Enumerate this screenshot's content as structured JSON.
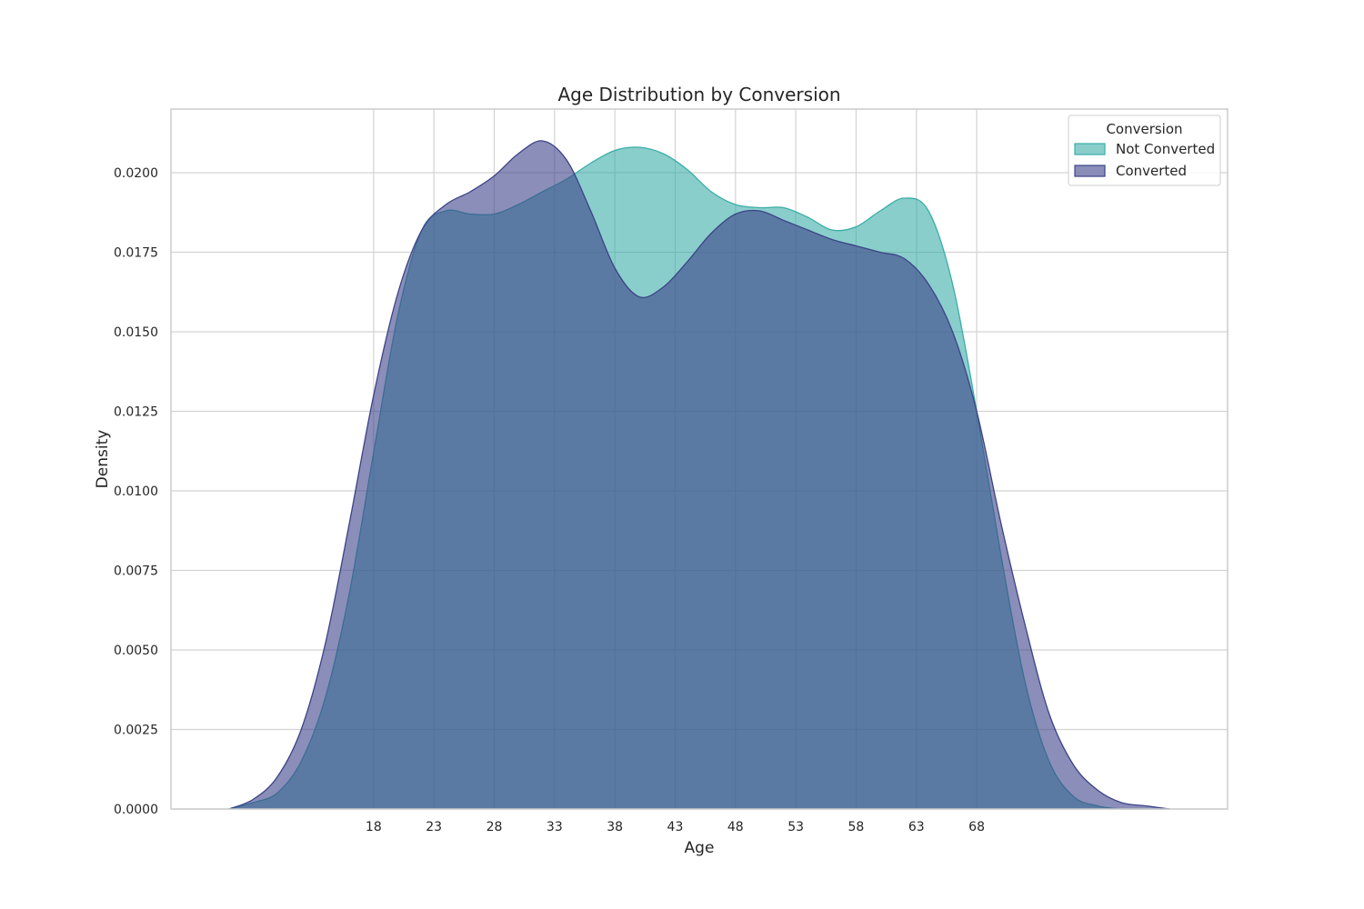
{
  "chart_data": {
    "type": "area",
    "title": "Age Distribution by Conversion",
    "xlabel": "Age",
    "ylabel": "Density",
    "xticks": [
      18,
      23,
      28,
      33,
      38,
      43,
      48,
      53,
      58,
      63,
      68
    ],
    "yticks": [
      "0.0000",
      "0.0025",
      "0.0050",
      "0.0075",
      "0.0100",
      "0.0125",
      "0.0150",
      "0.0175",
      "0.0200"
    ],
    "xlim": [
      1.2,
      88.8
    ],
    "ylim": [
      0,
      0.022
    ],
    "grid": true,
    "legend": {
      "title": "Conversion",
      "placement": "top-right"
    },
    "series": [
      {
        "name": "Not Converted",
        "color": "#3aada8",
        "x": [
          6,
          8,
          10,
          12,
          14,
          16,
          18,
          20,
          22,
          24,
          26,
          28,
          30,
          32,
          34,
          36,
          38,
          40,
          42,
          44,
          46,
          48,
          50,
          52,
          54,
          56,
          58,
          60,
          62,
          64,
          66,
          68,
          70,
          72,
          74,
          76,
          78,
          80,
          82,
          84
        ],
        "values": [
          0.0,
          0.0002,
          0.0005,
          0.0015,
          0.0035,
          0.0068,
          0.0112,
          0.0155,
          0.0182,
          0.0188,
          0.0187,
          0.0187,
          0.019,
          0.0194,
          0.0198,
          0.0203,
          0.0207,
          0.0208,
          0.0206,
          0.0201,
          0.0194,
          0.019,
          0.0189,
          0.0189,
          0.0186,
          0.0182,
          0.0183,
          0.0188,
          0.0192,
          0.0188,
          0.0165,
          0.0125,
          0.008,
          0.004,
          0.0015,
          0.0004,
          0.0001,
          0.0,
          0.0,
          0.0
        ]
      },
      {
        "name": "Converted",
        "color": "#3c4388",
        "x": [
          6,
          8,
          10,
          12,
          14,
          16,
          18,
          20,
          22,
          24,
          26,
          28,
          30,
          32,
          34,
          36,
          38,
          40,
          42,
          44,
          46,
          48,
          50,
          52,
          54,
          56,
          58,
          60,
          62,
          64,
          66,
          68,
          70,
          72,
          74,
          76,
          78,
          80,
          82,
          84
        ],
        "values": [
          0.0,
          0.0003,
          0.001,
          0.0025,
          0.0052,
          0.009,
          0.013,
          0.0162,
          0.0182,
          0.019,
          0.0194,
          0.0199,
          0.0206,
          0.021,
          0.0204,
          0.0188,
          0.017,
          0.0161,
          0.0164,
          0.0172,
          0.0181,
          0.0187,
          0.0188,
          0.0185,
          0.0182,
          0.0179,
          0.0177,
          0.0175,
          0.0173,
          0.0165,
          0.015,
          0.0125,
          0.009,
          0.0058,
          0.003,
          0.0014,
          0.0006,
          0.0002,
          0.0001,
          0.0
        ]
      }
    ]
  }
}
